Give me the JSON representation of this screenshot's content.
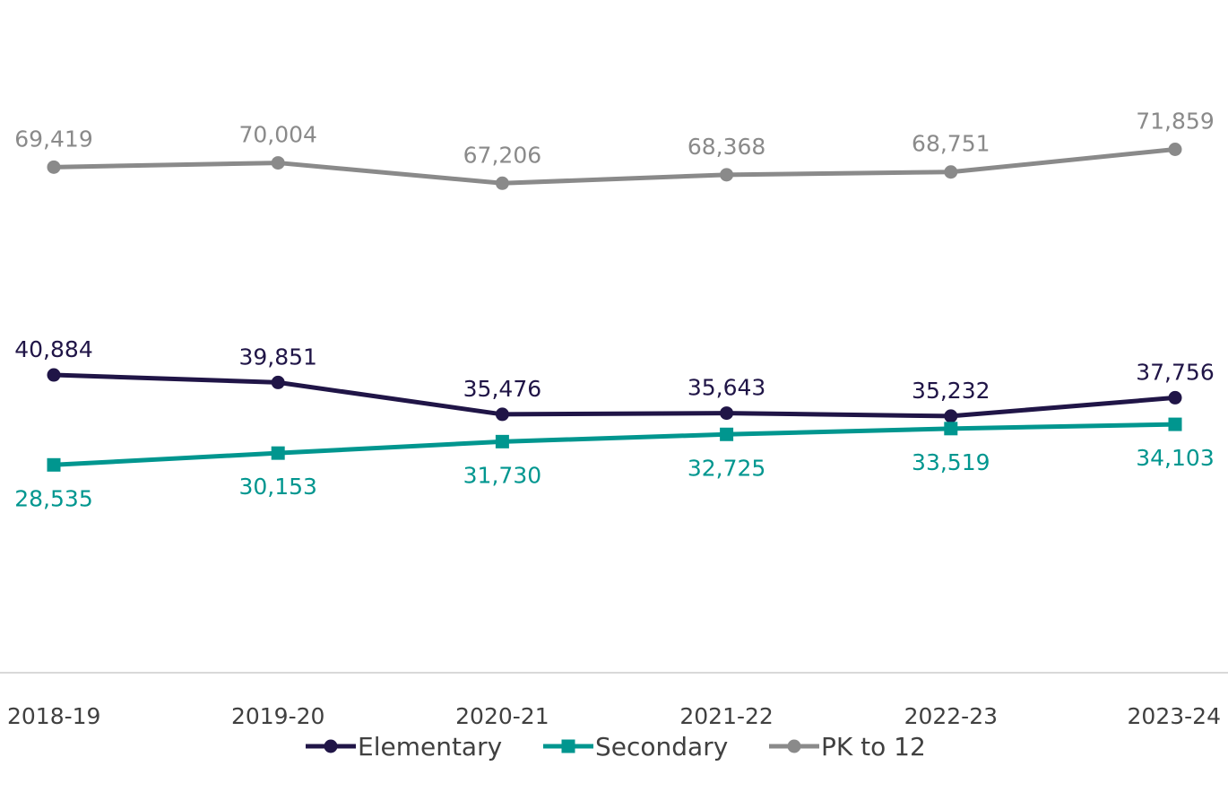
{
  "chart_data": {
    "type": "line",
    "title": "",
    "xlabel": "",
    "ylabel": "",
    "categories": [
      "2018-19",
      "2019-20",
      "2020-21",
      "2021-22",
      "2022-23",
      "2023-24"
    ],
    "series": [
      {
        "name": "Elementary",
        "values": [
          40884,
          39851,
          35476,
          35643,
          35232,
          37756
        ],
        "labels": [
          "40,884",
          "39,851",
          "35,476",
          "35,643",
          "35,232",
          "37,756"
        ],
        "color": "#201547",
        "marker": "circle"
      },
      {
        "name": "Secondary",
        "values": [
          28535,
          30153,
          31730,
          32725,
          33519,
          34103
        ],
        "labels": [
          "28,535",
          "30,153",
          "31,730",
          "32,725",
          "33,519",
          "34,103"
        ],
        "color": "#00968f",
        "marker": "square"
      },
      {
        "name": "PK to 12",
        "values": [
          69419,
          70004,
          67206,
          68368,
          68751,
          71859
        ],
        "labels": [
          "69,419",
          "70,004",
          "67,206",
          "68,368",
          "68,751",
          "71,859"
        ],
        "color": "#8a8a8a",
        "marker": "circle"
      }
    ],
    "ylim": [
      0,
      80000
    ],
    "grid": false,
    "legend_position": "bottom"
  }
}
